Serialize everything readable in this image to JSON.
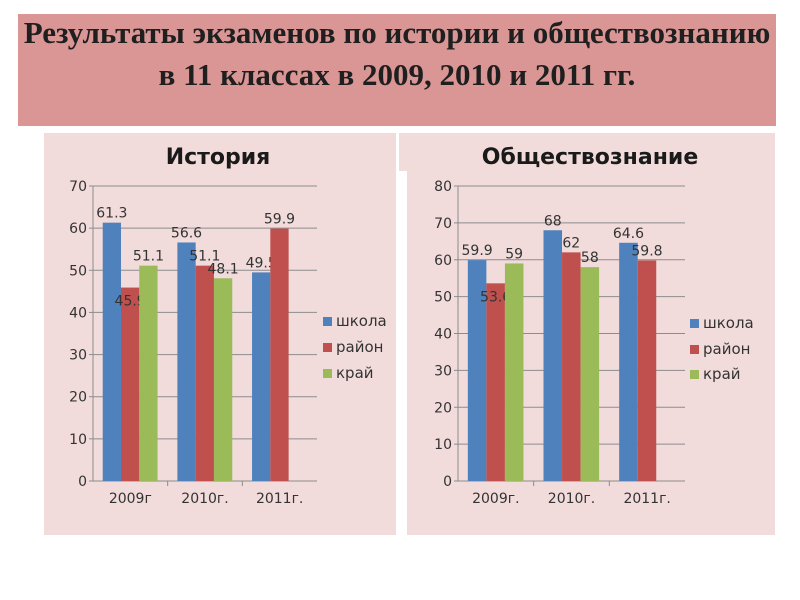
{
  "slide": {
    "title": "Результаты экзаменов по истории и обществознанию в 11 классах в 2009, 2010 и 2011 гг."
  },
  "colors": {
    "title_band": "#d99694",
    "panel": "#f2dcdb",
    "shkola": "#4f81bd",
    "rayon": "#c0504d",
    "kray": "#9bbb59"
  },
  "chart_data": [
    {
      "type": "bar",
      "title": "История",
      "categories": [
        "2009г",
        "2010г.",
        "2011г."
      ],
      "ylim": [
        0,
        70
      ],
      "yticks": [
        0,
        10,
        20,
        30,
        40,
        50,
        60,
        70
      ],
      "legend": "right",
      "series": [
        {
          "name": "школа",
          "values": [
            61.3,
            56.6,
            49.5
          ],
          "labels": [
            "61.3",
            "56.6",
            "49.5"
          ]
        },
        {
          "name": "район",
          "values": [
            45.9,
            51.1,
            59.9
          ],
          "labels": [
            "45.9",
            "51.1",
            "59.9"
          ]
        },
        {
          "name": "край",
          "values": [
            51.1,
            48.1,
            null
          ],
          "labels": [
            "51.1",
            "48.1",
            ""
          ]
        }
      ]
    },
    {
      "type": "bar",
      "title": "Обществознание",
      "categories": [
        "2009г.",
        "2010г.",
        "2011г."
      ],
      "ylim": [
        0,
        80
      ],
      "yticks": [
        0,
        10,
        20,
        30,
        40,
        50,
        60,
        70,
        80
      ],
      "legend": "right",
      "series": [
        {
          "name": "школа",
          "values": [
            59.9,
            68,
            64.6
          ],
          "labels": [
            "59.9",
            "68",
            "64.6"
          ]
        },
        {
          "name": "район",
          "values": [
            53.6,
            62,
            59.8
          ],
          "labels": [
            "53.6",
            "62",
            "59.8"
          ]
        },
        {
          "name": "край",
          "values": [
            59,
            58,
            null
          ],
          "labels": [
            "59",
            "58",
            ""
          ]
        }
      ]
    }
  ]
}
